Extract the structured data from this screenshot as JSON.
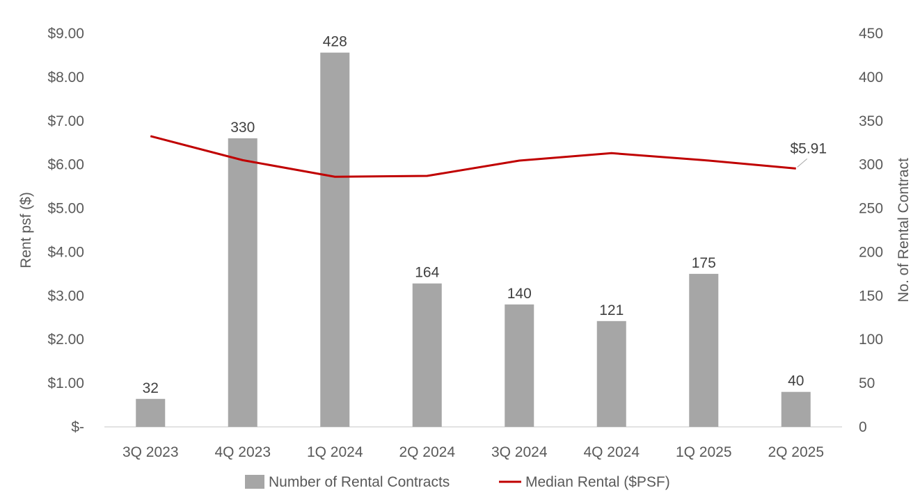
{
  "chart_data": {
    "type": "bar",
    "categories": [
      "3Q 2023",
      "4Q 2023",
      "1Q 2024",
      "2Q 2024",
      "3Q 2024",
      "4Q 2024",
      "1Q 2025",
      "2Q 2025"
    ],
    "series": [
      {
        "name": "Number of Rental Contracts",
        "type": "bar",
        "axis": "right",
        "color": "#a6a6a6",
        "values": [
          32,
          330,
          428,
          164,
          140,
          121,
          175,
          40
        ],
        "data_labels": [
          "32",
          "330",
          "428",
          "164",
          "140",
          "121",
          "175",
          "40"
        ]
      },
      {
        "name": "Median Rental ($PSF)",
        "type": "line",
        "axis": "left",
        "color": "#c00000",
        "values": [
          6.65,
          6.1,
          5.72,
          5.74,
          6.09,
          6.26,
          6.1,
          5.91
        ],
        "data_labels": [
          "",
          "",
          "",
          "",
          "",
          "",
          "",
          "$5.91"
        ]
      }
    ],
    "y_left": {
      "label": "Rent psf ($)",
      "range": [
        0,
        9
      ],
      "ticks": [
        0,
        1,
        2,
        3,
        4,
        5,
        6,
        7,
        8,
        9
      ],
      "tick_labels": [
        "$-",
        "$1.00",
        "$2.00",
        "$3.00",
        "$4.00",
        "$5.00",
        "$6.00",
        "$7.00",
        "$8.00",
        "$9.00"
      ]
    },
    "y_right": {
      "label": "No. of Rental Contract",
      "range": [
        0,
        450
      ],
      "ticks": [
        0,
        50,
        100,
        150,
        200,
        250,
        300,
        350,
        400,
        450
      ],
      "tick_labels": [
        "0",
        "50",
        "100",
        "150",
        "200",
        "250",
        "300",
        "350",
        "400",
        "450"
      ]
    },
    "grid": false,
    "legend_position": "bottom"
  }
}
